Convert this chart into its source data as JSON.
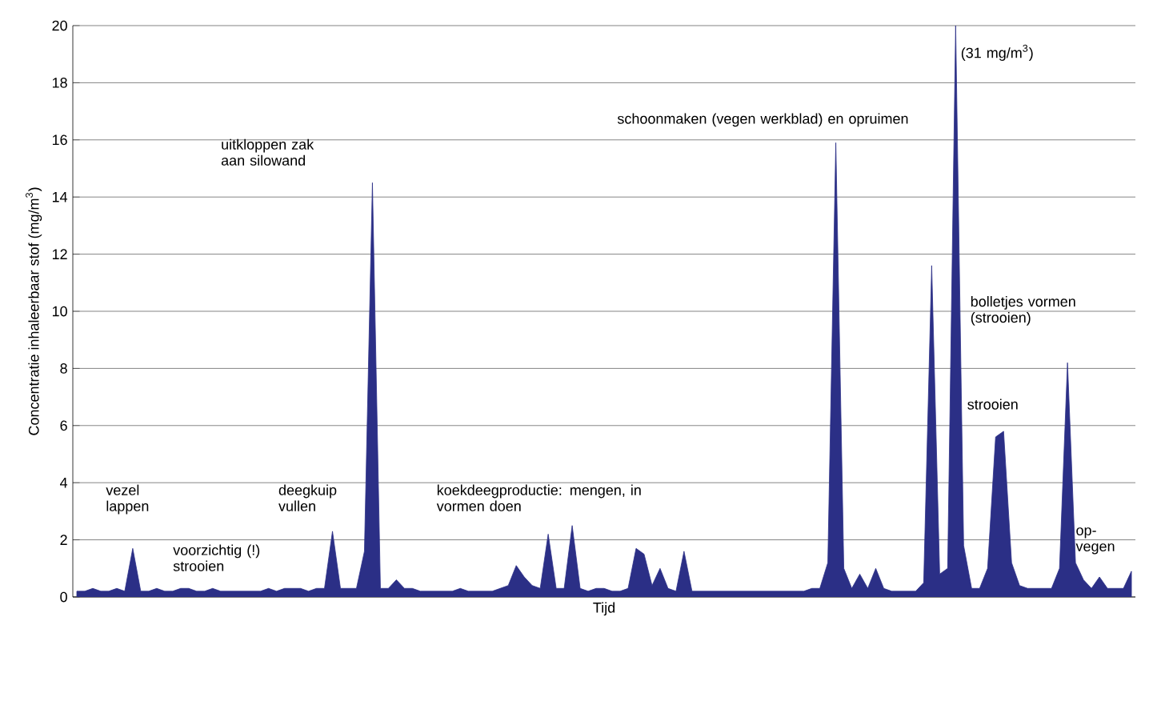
{
  "chart_data": {
    "type": "area",
    "xlabel": "Tijd",
    "ylabel": "Concentratie inhaleerbaar stof (mg/m$^{3}$)",
    "categories": [
      null,
      null,
      null,
      null,
      null,
      null,
      null,
      null,
      null,
      null,
      null,
      null,
      null,
      null,
      null,
      null,
      null,
      null,
      null,
      null,
      null,
      null,
      null,
      null,
      null,
      null,
      null,
      null,
      null,
      null,
      null,
      null,
      null,
      null,
      null,
      null,
      null,
      null,
      null,
      null,
      null,
      null,
      null,
      null,
      null,
      null,
      null,
      null,
      null,
      null,
      null,
      null,
      null,
      null,
      null,
      null,
      null,
      null,
      null,
      null,
      null,
      null,
      null,
      null,
      null,
      null,
      null,
      null,
      null,
      null,
      null,
      null,
      null,
      null,
      null,
      null,
      null,
      null,
      null,
      null,
      null,
      null,
      null,
      null,
      null,
      null,
      null,
      null,
      null,
      null,
      null,
      null,
      null,
      null,
      null,
      null,
      null,
      null,
      null,
      null,
      null,
      null,
      null,
      null,
      null,
      null,
      null,
      null,
      null,
      null,
      null,
      null,
      null,
      null,
      null,
      null,
      null,
      null,
      null,
      null,
      null,
      null,
      null,
      null,
      null,
      null,
      null,
      null,
      null,
      null,
      null,
      null,
      null
    ],
    "series": [
      {
        "color": "#2b2f86",
        "values": [
          0.2,
          0.2,
          0.3,
          0.2,
          0.2,
          0.3,
          0.2,
          1.7,
          0.2,
          0.2,
          0.3,
          0.2,
          0.2,
          0.3,
          0.3,
          0.2,
          0.2,
          0.3,
          0.2,
          0.2,
          0.2,
          0.2,
          0.2,
          0.2,
          0.3,
          0.2,
          0.3,
          0.3,
          0.3,
          0.2,
          0.3,
          0.3,
          2.3,
          0.3,
          0.3,
          0.3,
          1.6,
          14.5,
          0.3,
          0.3,
          0.6,
          0.3,
          0.3,
          0.2,
          0.2,
          0.2,
          0.2,
          0.2,
          0.3,
          0.2,
          0.2,
          0.2,
          0.2,
          0.3,
          0.4,
          1.1,
          0.7,
          0.4,
          0.3,
          2.2,
          0.3,
          0.3,
          2.5,
          0.3,
          0.2,
          0.3,
          0.3,
          0.2,
          0.2,
          0.3,
          1.7,
          1.5,
          0.4,
          1.0,
          0.3,
          0.2,
          1.6,
          0.2,
          0.2,
          0.2,
          0.2,
          0.2,
          0.2,
          0.2,
          0.2,
          0.2,
          0.2,
          0.2,
          0.2,
          0.2,
          0.2,
          0.2,
          0.3,
          0.3,
          1.2,
          15.9,
          1.0,
          0.3,
          0.8,
          0.3,
          1.0,
          0.3,
          0.2,
          0.2,
          0.2,
          0.2,
          0.5,
          11.6,
          0.8,
          1.0,
          20,
          1.8,
          0.3,
          0.3,
          1.0,
          5.6,
          5.8,
          1.2,
          0.4,
          0.3,
          0.3,
          0.3,
          0.3,
          1.0,
          8.2,
          1.2,
          0.6,
          0.3,
          0.7,
          0.3,
          0.3,
          0.3,
          0.9
        ]
      }
    ],
    "ylim": [
      0,
      20
    ],
    "yticks": [
      0,
      2,
      4,
      6,
      8,
      10,
      12,
      14,
      16,
      18,
      20
    ],
    "grid": "y",
    "tick_labels": "y",
    "annotations": [
      "vezel lappen",
      "voorzichtig (!) strooien",
      "deegkuip vullen",
      "uitkloppen zak aan silowand",
      "koekdeegproductie: mengen, in vormen doen",
      "schoonmaken (vegen werkblad) en opruimen",
      "(31 mg/m$^{3}$)",
      "bolletjes vormen (strooien)",
      "strooien",
      "op-vegen"
    ]
  }
}
